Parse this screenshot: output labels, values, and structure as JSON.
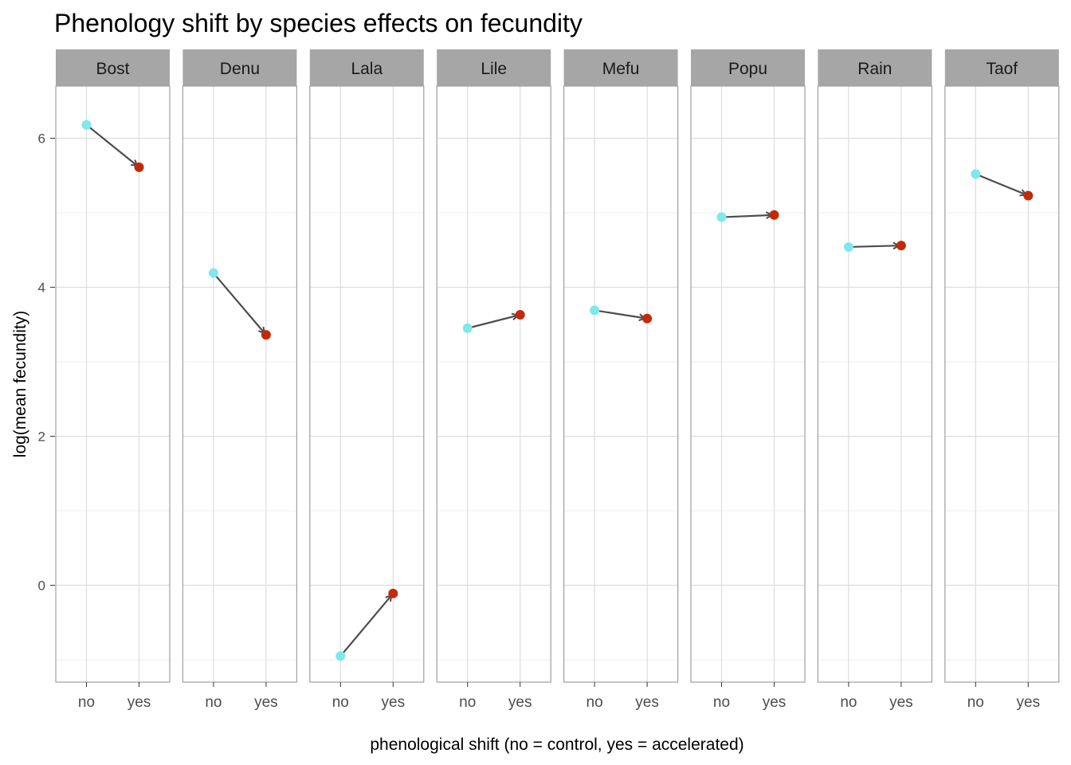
{
  "chart_data": {
    "type": "line",
    "title": "Phenology shift by species effects on fecundity",
    "xlabel": "phenological shift (no = control, yes = accelerated)",
    "ylabel": "log(mean fecundity)",
    "categories": [
      "no",
      "yes"
    ],
    "ylim": [
      -1.3,
      6.7
    ],
    "yticks": [
      0,
      2,
      4,
      6
    ],
    "grid": true,
    "colors": {
      "no": "#7fe8ec",
      "yes": "#c42a08",
      "arrow": "#4d4d4d",
      "strip": "#a6a6a6",
      "grid": "#dcdcdc",
      "border": "#a0a0a0"
    },
    "facets": [
      {
        "name": "Bost",
        "values": [
          6.18,
          5.61
        ]
      },
      {
        "name": "Denu",
        "values": [
          4.19,
          3.36
        ]
      },
      {
        "name": "Lala",
        "values": [
          -0.95,
          -0.11
        ]
      },
      {
        "name": "Lile",
        "values": [
          3.45,
          3.63
        ]
      },
      {
        "name": "Mefu",
        "values": [
          3.69,
          3.58
        ]
      },
      {
        "name": "Popu",
        "values": [
          4.94,
          4.97
        ]
      },
      {
        "name": "Rain",
        "values": [
          4.54,
          4.56
        ]
      },
      {
        "name": "Taof",
        "values": [
          5.52,
          5.23
        ]
      }
    ]
  }
}
